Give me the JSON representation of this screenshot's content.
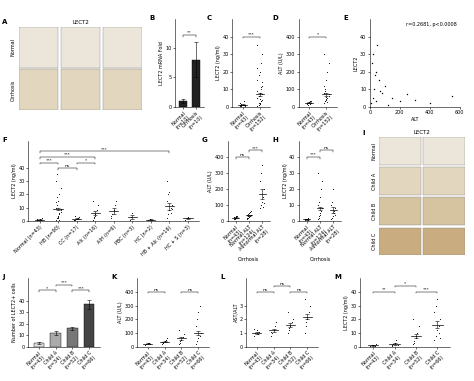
{
  "chart_data": [
    {
      "label": "A",
      "type": "image",
      "title": "LECT2",
      "rows": [
        "Normal",
        "Cirrhosis"
      ]
    },
    {
      "label": "B",
      "type": "bar",
      "ylabel": "LECT2 mRNA Fold",
      "categories": [
        "Normal\n(n=10)",
        "Cirrhosis\n(n=10)"
      ],
      "values": [
        1,
        8
      ],
      "errors": [
        0.3,
        3
      ],
      "colors": [
        "#222222",
        "#222222"
      ],
      "ylim": [
        0,
        15
      ],
      "yticks": [
        0,
        5,
        10
      ],
      "brackets": [
        {
          "groups": [
            "Normal\n(n=10)",
            "Cirrhosis\n(n=10)"
          ],
          "text": "**"
        }
      ]
    },
    {
      "label": "C",
      "type": "dot",
      "ylabel": "LECT2 (ng/ml)",
      "categories": [
        "Normal\n(n=43)",
        "Cirrhosis\n(n=152)"
      ],
      "points": [
        [
          0.5,
          0.8,
          1,
          1.2,
          0.6,
          2,
          1.5,
          0.9,
          3,
          0.7,
          1.1,
          0.4
        ],
        [
          0.5,
          1,
          2,
          3,
          4,
          5,
          6,
          8,
          10,
          12,
          15,
          18,
          20,
          25,
          30,
          35,
          2,
          1.5,
          3.5,
          7,
          9,
          0.8,
          4.5,
          11,
          14,
          22
        ]
      ],
      "means": [
        1.2,
        7
      ],
      "errors": [
        0.3,
        1
      ],
      "ylim": [
        0,
        50
      ],
      "yticks": [
        0,
        10,
        20,
        30,
        40
      ],
      "brackets": [
        {
          "groups": [
            "Normal\n(n=43)",
            "Cirrhosis\n(n=152)"
          ],
          "text": "***"
        }
      ]
    },
    {
      "label": "D",
      "type": "dot",
      "ylabel": "ALT (U/L)",
      "categories": [
        "Normal\n(n=43)",
        "Cirrhosis\n(n=152)"
      ],
      "points": [
        [
          15,
          20,
          25,
          18,
          30,
          22,
          12,
          28,
          35,
          19
        ],
        [
          20,
          30,
          40,
          50,
          60,
          80,
          100,
          150,
          200,
          250,
          300,
          35,
          45,
          25,
          70,
          120,
          90,
          55
        ]
      ],
      "means": [
        22,
        70
      ],
      "errors": [
        3,
        10
      ],
      "ylim": [
        0,
        500
      ],
      "yticks": [
        0,
        100,
        200,
        300,
        400
      ],
      "brackets": [
        {
          "groups": [
            "Normal\n(n=43)",
            "Cirrhosis\n(n=152)"
          ],
          "text": "*"
        }
      ]
    },
    {
      "label": "E",
      "type": "scatter",
      "xlabel": "ALT",
      "ylabel": "LECT2",
      "annotation": "r=0.2681, p<0.0008",
      "x": [
        10,
        20,
        30,
        40,
        50,
        60,
        80,
        100,
        150,
        200,
        250,
        300,
        400,
        550,
        15,
        25,
        35,
        45,
        70,
        120
      ],
      "y": [
        2,
        5,
        10,
        20,
        35,
        15,
        8,
        12,
        5,
        3,
        7,
        4,
        2,
        6,
        25,
        30,
        18,
        3,
        9,
        1
      ],
      "xlim": [
        0,
        600
      ],
      "ylim": [
        0,
        50
      ],
      "xticks": [
        0,
        200,
        400,
        600
      ],
      "yticks": [
        0,
        10,
        20,
        30,
        40
      ]
    },
    {
      "label": "F",
      "type": "dot",
      "ylabel": "LECT2 (ng/ml)",
      "categories": [
        "Normal (n=43)",
        "HB (n=90)",
        "CC (n=17)",
        "Alc (n=16)",
        "AIH (n=6)",
        "PBC (n=3)",
        "HC (n=2)",
        "HB + Alc (n=16)",
        "HC + S (n=3)"
      ],
      "points": [
        [
          0.5,
          1,
          1.2,
          0.8,
          2,
          1.5,
          0.6
        ],
        [
          1,
          2,
          3,
          5,
          8,
          10,
          12,
          15,
          20,
          25,
          30,
          35,
          4,
          6,
          9,
          14,
          18,
          2.5,
          0.8,
          7
        ],
        [
          0.5,
          1,
          1.5,
          2,
          3,
          0.8,
          4,
          1.2
        ],
        [
          1,
          2,
          4,
          8,
          12,
          15,
          3,
          5
        ],
        [
          2,
          5,
          8,
          12,
          15,
          4
        ],
        [
          1,
          3,
          6
        ],
        [
          0.5,
          1.5
        ],
        [
          2,
          5,
          8,
          10,
          12,
          15,
          20,
          22,
          6,
          9,
          30
        ],
        [
          1,
          2,
          3
        ]
      ],
      "means": [
        1.1,
        9,
        1.8,
        6,
        7.5,
        3.3,
        1,
        11,
        2
      ],
      "errors": [
        0.3,
        1,
        0.4,
        1.8,
        2,
        1.5,
        0.5,
        2.5,
        0.6
      ],
      "ylim": [
        0,
        60
      ],
      "yticks": [
        0,
        10,
        20,
        30,
        40
      ],
      "brackets": [
        {
          "groups": [
            "HB (n=90)",
            "CC (n=17)"
          ],
          "text": "ns"
        },
        {
          "groups": [
            "CC (n=17)",
            "Alc (n=16)"
          ],
          "text": "*"
        },
        {
          "groups": [
            "Normal (n=43)",
            "HB (n=90)"
          ],
          "text": "***"
        },
        {
          "groups": [
            "Normal (n=43)",
            "Alc (n=16)"
          ],
          "text": "***"
        },
        {
          "groups": [
            "Normal (n=43)",
            "HB + Alc (n=16)"
          ],
          "text": "***"
        }
      ]
    },
    {
      "label": "G",
      "type": "dot",
      "ylabel": "ALT (U/L)",
      "xlabel": "Cirrhosis",
      "categories": [
        "Normal\n(n=43)",
        "Normal ALT\n(n=124)",
        "Abnormal ALT\n(n=28)"
      ],
      "points": [
        [
          15,
          20,
          25,
          18,
          30,
          22,
          12,
          28
        ],
        [
          15,
          20,
          25,
          30,
          35,
          40,
          45,
          50,
          55,
          60,
          18,
          28
        ],
        [
          80,
          100,
          120,
          150,
          200,
          250,
          300,
          350,
          90,
          110
        ]
      ],
      "means": [
        21,
        35,
        170
      ],
      "errors": [
        3,
        4,
        30
      ],
      "ylim": [
        0,
        500
      ],
      "yticks": [
        0,
        100,
        200,
        300,
        400
      ],
      "brackets": [
        {
          "groups": [
            "Normal\n(n=43)",
            "Normal ALT\n(n=124)"
          ],
          "text": "ns"
        },
        {
          "groups": [
            "Normal ALT\n(n=124)",
            "Abnormal ALT\n(n=28)"
          ],
          "text": "***"
        }
      ]
    },
    {
      "label": "H",
      "type": "dot",
      "ylabel": "LECT2 (ng/ml)",
      "xlabel": "Cirrhosis",
      "categories": [
        "Normal\n(n=43)",
        "Normal ALT\n(n=124)",
        "Abnormal ALT\n(n=28)"
      ],
      "points": [
        [
          0.5,
          1,
          1.2,
          0.8,
          2,
          1.5
        ],
        [
          1,
          2,
          4,
          6,
          8,
          10,
          12,
          15,
          20,
          25,
          30,
          3,
          5
        ],
        [
          1,
          2,
          3,
          5,
          8,
          10,
          12,
          20,
          6,
          4
        ]
      ],
      "means": [
        1.2,
        8,
        7
      ],
      "errors": [
        0.3,
        1,
        2
      ],
      "ylim": [
        0,
        50
      ],
      "yticks": [
        0,
        10,
        20,
        30,
        40
      ],
      "brackets": [
        {
          "groups": [
            "Normal\n(n=43)",
            "Normal ALT\n(n=124)"
          ],
          "text": "***"
        },
        {
          "groups": [
            "Normal ALT\n(n=124)",
            "Abnormal ALT\n(n=28)"
          ],
          "text": "ns"
        }
      ]
    },
    {
      "label": "I",
      "type": "image",
      "title": "LECT2",
      "rows": [
        "Normal",
        "Child A",
        "Child B",
        "Child C"
      ]
    },
    {
      "label": "J",
      "type": "bar",
      "ylabel": "Number of LECT2+ cells",
      "categories": [
        "Normal\n(n=43)",
        "Child A\n(n=34)",
        "Child B\n(n=52)",
        "Child C\n(n=66)"
      ],
      "values": [
        3,
        12,
        16,
        37
      ],
      "errors": [
        1,
        1.5,
        1.5,
        4
      ],
      "colors": [
        "#dddddd",
        "#aaaaaa",
        "#777777",
        "#444444"
      ],
      "ylim": [
        0,
        60
      ],
      "yticks": [
        0,
        10,
        20,
        30,
        40
      ],
      "brackets": [
        {
          "groups": [
            "Normal\n(n=43)",
            "Child A\n(n=34)"
          ],
          "text": "*"
        },
        {
          "groups": [
            "Child A\n(n=34)",
            "Child B\n(n=52)"
          ],
          "text": "***"
        },
        {
          "groups": [
            "Child B\n(n=52)",
            "Child C\n(n=66)"
          ],
          "text": "***"
        }
      ]
    },
    {
      "label": "K",
      "type": "dot",
      "ylabel": "ALT (U/L)",
      "categories": [
        "Normal\n(n=43)",
        "Child A\n(n=34)",
        "Child B\n(n=52)",
        "Child C\n(n=66)"
      ],
      "points": [
        [
          15,
          20,
          25,
          30,
          22
        ],
        [
          20,
          30,
          40,
          50,
          60,
          35,
          25
        ],
        [
          20,
          30,
          50,
          70,
          90,
          120,
          40
        ],
        [
          20,
          40,
          60,
          80,
          100,
          150,
          200,
          250,
          300
        ]
      ],
      "means": [
        22,
        37,
        60,
        100
      ],
      "errors": [
        3,
        5,
        10,
        15
      ],
      "ylim": [
        0,
        500
      ],
      "yticks": [
        0,
        100,
        200,
        300,
        400
      ],
      "brackets": [
        {
          "groups": [
            "Normal\n(n=43)",
            "Child A\n(n=34)"
          ],
          "text": "ns"
        },
        {
          "groups": [
            "Child B\n(n=52)",
            "Child C\n(n=66)"
          ],
          "text": "ns"
        }
      ]
    },
    {
      "label": "L",
      "type": "dot",
      "ylabel": "AST/ALT",
      "categories": [
        "Normal\n(n=43)",
        "Child A\n(n=34)",
        "Child B\n(n=52)",
        "Child C\n(n=66)"
      ],
      "points": [
        [
          0.8,
          1,
          1.2,
          0.9,
          1.1,
          1.3
        ],
        [
          0.8,
          1,
          1.2,
          1.5,
          1.8,
          1.1
        ],
        [
          1,
          1.2,
          1.5,
          1.8,
          2,
          2.5,
          1.4
        ],
        [
          1,
          1.5,
          2,
          2.5,
          3,
          3.5,
          1.8,
          2.2
        ]
      ],
      "means": [
        1,
        1.2,
        1.6,
        2.2
      ],
      "errors": [
        0.1,
        0.1,
        0.15,
        0.2
      ],
      "ylim": [
        0,
        5
      ],
      "yticks": [
        0,
        1,
        2,
        3
      ],
      "brackets": [
        {
          "groups": [
            "Normal\n(n=43)",
            "Child A\n(n=34)"
          ],
          "text": "ns"
        },
        {
          "groups": [
            "Child A\n(n=34)",
            "Child B\n(n=52)"
          ],
          "text": "ns"
        },
        {
          "groups": [
            "Child B\n(n=52)",
            "Child C\n(n=66)"
          ],
          "text": "ns"
        }
      ]
    },
    {
      "label": "M",
      "type": "dot",
      "ylabel": "LECT2 (ng/ml)",
      "categories": [
        "Normal\n(n=43)",
        "Child A\n(n=34)",
        "Child B\n(n=52)",
        "Child C\n(n=66)"
      ],
      "points": [
        [
          0.5,
          1,
          1.2,
          0.8,
          2
        ],
        [
          1,
          2,
          3,
          5,
          1.5,
          0.8
        ],
        [
          2,
          4,
          6,
          10,
          15,
          20,
          3,
          8
        ],
        [
          5,
          8,
          12,
          15,
          20,
          25,
          30,
          35,
          10,
          6
        ]
      ],
      "means": [
        1.1,
        2.2,
        8,
        16
      ],
      "errors": [
        0.3,
        0.6,
        1.5,
        2.5
      ],
      "ylim": [
        0,
        50
      ],
      "yticks": [
        0,
        10,
        20,
        30,
        40
      ],
      "brackets": [
        {
          "groups": [
            "Normal\n(n=43)",
            "Child A\n(n=34)"
          ],
          "text": "**"
        },
        {
          "groups": [
            "Child A\n(n=34)",
            "Child B\n(n=52)"
          ],
          "text": "*"
        },
        {
          "groups": [
            "Child B\n(n=52)",
            "Child C\n(n=66)"
          ],
          "text": "***"
        }
      ]
    }
  ]
}
